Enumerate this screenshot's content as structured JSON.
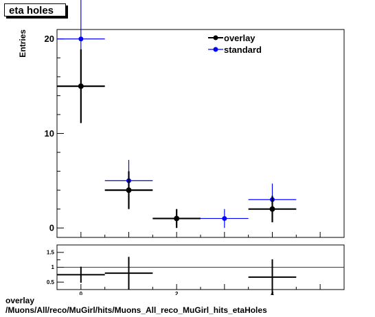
{
  "title": "eta holes",
  "footer": {
    "line1": "overlay",
    "line2": "/Muons/All/reco/MuGirl/hits/Muons_All_reco_MuGirl_hits_etaHoles"
  },
  "colors": {
    "overlay": "#000000",
    "standard": "#0000ff",
    "ratio_line": "#cc0000"
  },
  "chart_data": [
    {
      "type": "scatter",
      "ylabel": "Entries",
      "xlim": [
        -0.5,
        5.5
      ],
      "ylim": [
        -1,
        21
      ],
      "y_ticks": [
        0,
        10,
        20
      ],
      "x_ticks": [
        0,
        2,
        4
      ],
      "legend": {
        "placement": "top-right",
        "entries": [
          "overlay",
          "standard"
        ]
      },
      "series": [
        {
          "name": "overlay",
          "color": "#000000",
          "points": [
            {
              "x": 0,
              "xerr": 0.5,
              "y": 15,
              "yerr": 3.9
            },
            {
              "x": 1,
              "xerr": 0.5,
              "y": 4,
              "yerr": 2.0
            },
            {
              "x": 2,
              "xerr": 0.5,
              "y": 1,
              "yerr": 1.0
            },
            {
              "x": 4,
              "xerr": 0.5,
              "y": 2,
              "yerr": 1.4
            }
          ]
        },
        {
          "name": "standard",
          "color": "#0000ff",
          "points": [
            {
              "x": 0,
              "xerr": 0.5,
              "y": 20,
              "yerr": 4.5
            },
            {
              "x": 1,
              "xerr": 0.5,
              "y": 5,
              "yerr": 2.2
            },
            {
              "x": 3,
              "xerr": 0.5,
              "y": 1,
              "yerr": 1.0
            },
            {
              "x": 4,
              "xerr": 0.5,
              "y": 3,
              "yerr": 1.7
            }
          ]
        }
      ]
    },
    {
      "type": "scatter",
      "xlim": [
        -0.5,
        5.5
      ],
      "ylim": [
        0.25,
        1.75
      ],
      "y_ticks": [
        0.5,
        1,
        1.5
      ],
      "x_ticks": [
        0,
        2,
        4
      ],
      "reference_line": 1,
      "series": [
        {
          "name": "ratio",
          "color": "#000000",
          "points": [
            {
              "x": 0,
              "xerr": 0.5,
              "y": 0.75,
              "yerr": 0.27
            },
            {
              "x": 1,
              "xerr": 0.5,
              "y": 0.8,
              "yerr": 0.55
            },
            {
              "x": 4,
              "xerr": 0.5,
              "y": 0.667,
              "yerr": 0.6
            }
          ]
        }
      ]
    }
  ]
}
